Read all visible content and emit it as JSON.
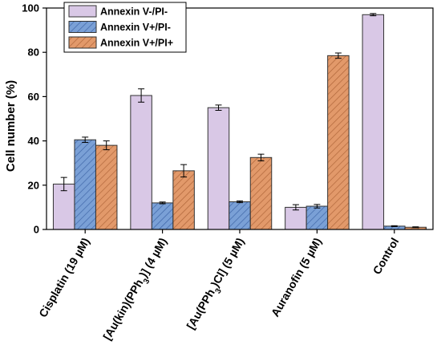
{
  "chart_data": {
    "type": "bar",
    "title": "",
    "xlabel": "",
    "ylabel": "Cell number (%)",
    "ylim": [
      0,
      100
    ],
    "yticks": [
      0,
      20,
      40,
      60,
      80,
      100
    ],
    "grid": false,
    "legend_position": "top-left",
    "categories": [
      {
        "pre": "Cisplatin (19 µM)",
        "sub": "",
        "post": ""
      },
      {
        "pre": "[Au(kin)(PPh",
        "sub": "3",
        "post": ")] (4 µM)"
      },
      {
        "pre": "[Au(PPh",
        "sub": "3",
        "post": ")Cl] (5 µM)"
      },
      {
        "pre": "Auranofin (5 µM)",
        "sub": "",
        "post": ""
      },
      {
        "pre": "Control",
        "sub": "",
        "post": ""
      }
    ],
    "series": [
      {
        "name": "Annexin V-/PI-",
        "color": "#d9c8e6",
        "hatch": "none",
        "values": [
          20.5,
          60.5,
          55.0,
          10.0,
          97.0
        ],
        "errors": [
          3.0,
          3.0,
          1.2,
          1.2,
          0.5
        ]
      },
      {
        "name": "Annexin V+/PI-",
        "color": "#7aa0d6",
        "hatch": "diagonal",
        "values": [
          40.5,
          12.0,
          12.5,
          10.5,
          1.5
        ],
        "errors": [
          1.2,
          0.4,
          0.4,
          0.8,
          0.2
        ]
      },
      {
        "name": "Annexin V+/PI+",
        "color": "#e2996a",
        "hatch": "diagonal",
        "values": [
          38.0,
          26.5,
          32.5,
          78.5,
          1.0
        ],
        "errors": [
          2.0,
          2.8,
          1.5,
          1.2,
          0.2
        ]
      }
    ]
  }
}
